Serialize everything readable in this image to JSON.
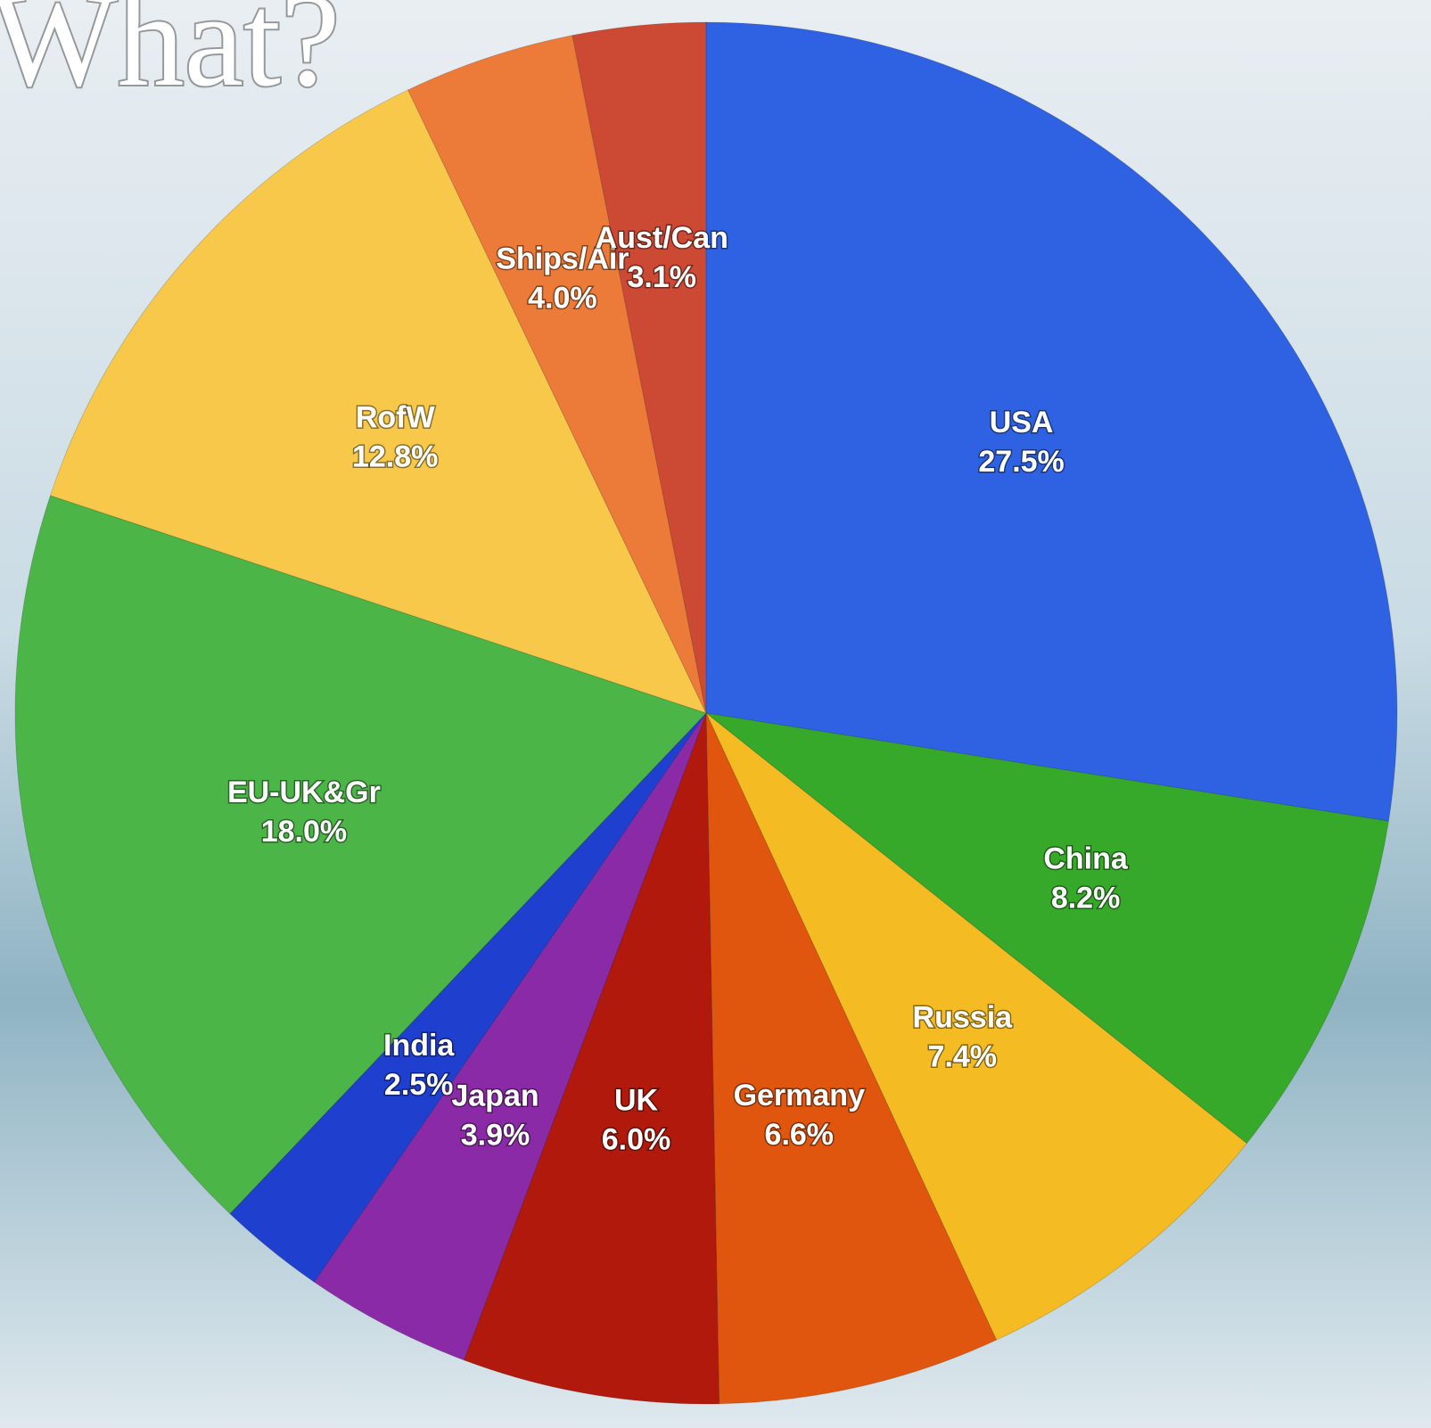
{
  "chart_data": {
    "type": "pie",
    "title": "What?",
    "categories": [
      "USA",
      "China",
      "Russia",
      "Germany",
      "UK",
      "Japan",
      "India",
      "EU-UK&Gr",
      "RofW",
      "Ships/Air",
      "Aust/Can"
    ],
    "values": [
      27.5,
      8.2,
      7.4,
      6.6,
      6.0,
      3.9,
      2.5,
      18.0,
      12.8,
      4.0,
      3.1
    ],
    "value_labels": [
      "27.5%",
      "8.2%",
      "7.4%",
      "6.6%",
      "6.0%",
      "3.9%",
      "2.5%",
      "18.0%",
      "12.8%",
      "4.0%",
      "3.1%"
    ],
    "colors": [
      "#2f62e2",
      "#37a92a",
      "#f4bb22",
      "#e1560f",
      "#b0190c",
      "#8b2aa6",
      "#1f3fcf",
      "#4cb548",
      "#f8c84a",
      "#ec7a38",
      "#cc4934"
    ]
  }
}
